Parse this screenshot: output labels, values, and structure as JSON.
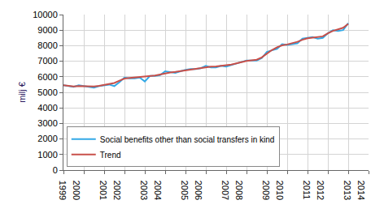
{
  "chart_data": {
    "type": "line",
    "y_label": "milj €",
    "x": [
      1999,
      1999.25,
      1999.5,
      1999.75,
      2000,
      2000.25,
      2000.5,
      2000.75,
      2001,
      2001.25,
      2001.5,
      2001.75,
      2002,
      2002.25,
      2002.5,
      2002.75,
      2003,
      2003.25,
      2003.5,
      2003.75,
      2004,
      2004.25,
      2004.5,
      2004.75,
      2005,
      2005.25,
      2005.5,
      2005.75,
      2006,
      2006.25,
      2006.5,
      2006.75,
      2007,
      2007.25,
      2007.5,
      2007.75,
      2008,
      2008.25,
      2008.5,
      2008.75,
      2009,
      2009.25,
      2009.5,
      2009.75,
      2010,
      2010.25,
      2010.5,
      2010.75,
      2011,
      2011.25,
      2011.5,
      2011.75,
      2012,
      2012.25,
      2012.5,
      2012.75,
      2013
    ],
    "series": [
      {
        "name": "Social benefits other than social transfers in kind",
        "color": "#33a9e6",
        "values": [
          5450,
          5400,
          5350,
          5450,
          5400,
          5350,
          5300,
          5400,
          5450,
          5500,
          5400,
          5650,
          5950,
          5900,
          5900,
          5950,
          5700,
          6050,
          6050,
          6100,
          6350,
          6300,
          6250,
          6350,
          6450,
          6500,
          6500,
          6550,
          6700,
          6600,
          6600,
          6700,
          6650,
          6750,
          6850,
          6950,
          7050,
          7050,
          7050,
          7200,
          7600,
          7700,
          7800,
          8100,
          8050,
          8100,
          8150,
          8450,
          8500,
          8550,
          8450,
          8500,
          8800,
          9000,
          8950,
          9000,
          9450
        ]
      },
      {
        "name": "Trend",
        "color": "#c8504a",
        "values": [
          5450,
          5400,
          5380,
          5400,
          5400,
          5380,
          5380,
          5420,
          5480,
          5530,
          5600,
          5750,
          5880,
          5920,
          5950,
          5980,
          6000,
          6050,
          6080,
          6150,
          6230,
          6280,
          6320,
          6370,
          6430,
          6480,
          6520,
          6570,
          6620,
          6650,
          6670,
          6700,
          6720,
          6780,
          6860,
          6950,
          7020,
          7060,
          7100,
          7250,
          7500,
          7720,
          7900,
          8020,
          8080,
          8150,
          8250,
          8380,
          8480,
          8520,
          8550,
          8600,
          8800,
          8950,
          9050,
          9150,
          9400
        ]
      }
    ],
    "xlim": [
      1999,
      2014
    ],
    "xticks": [
      1999,
      2000,
      2001,
      2002,
      2003,
      2004,
      2005,
      2006,
      2007,
      2008,
      2009,
      2010,
      2011,
      2012,
      2013,
      2014
    ],
    "ylim": [
      0,
      10000
    ],
    "yticks": [
      0,
      1000,
      2000,
      3000,
      4000,
      5000,
      6000,
      7000,
      8000,
      9000,
      10000
    ],
    "grid": true,
    "legend": "lower left"
  }
}
